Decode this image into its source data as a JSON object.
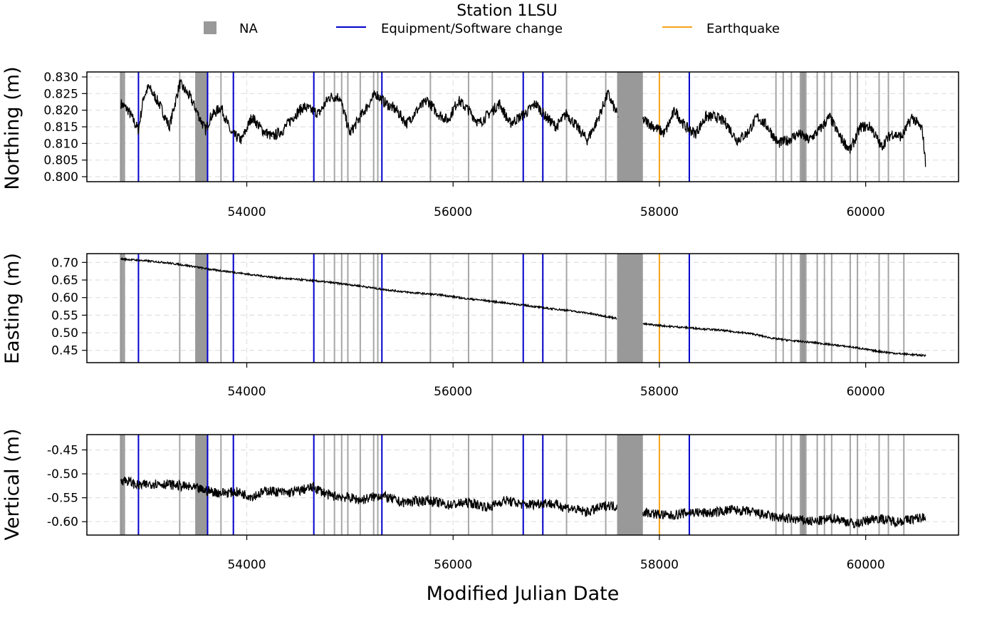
{
  "chart_data": {
    "type": "line",
    "title": "Station 1LSU",
    "xlabel": "Modified Julian Date",
    "xlim": [
      52450,
      60900
    ],
    "x_ticks": [
      54000,
      56000,
      58000,
      60000
    ],
    "grid": true,
    "legend_position": "top",
    "legend": [
      {
        "label": "NA",
        "kind": "box",
        "color": "#999999"
      },
      {
        "label": "Equipment/Software change",
        "kind": "line",
        "color": "#0000cc"
      },
      {
        "label": "Earthquake",
        "kind": "line",
        "color": "#f5a31a"
      }
    ],
    "events": {
      "na_lines": [
        52800,
        53350,
        53750,
        54750,
        54850,
        54920,
        54980,
        55100,
        55230,
        55270,
        55780,
        56150,
        56380,
        57100,
        57480,
        59130,
        59200,
        59280,
        59370,
        59420,
        59530,
        59600,
        59670,
        59850,
        59920,
        60130,
        60220,
        60370
      ],
      "na_bands": [
        [
          52770,
          52820
        ],
        [
          53500,
          53620
        ],
        [
          57590,
          57840
        ],
        [
          59360,
          59420
        ]
      ],
      "equipment_change": [
        52950,
        53620,
        53870,
        54650,
        55310,
        56680,
        56870,
        58290
      ],
      "earthquake": [
        58000
      ]
    },
    "series": [
      {
        "name": "Northing (m)",
        "ylabel": "Northing (m)",
        "ylim": [
          0.7985,
          0.8315
        ],
        "y_ticks": [
          0.8,
          0.805,
          0.81,
          0.815,
          0.82,
          0.825,
          0.83
        ],
        "y_tick_labels": [
          "0.800",
          "0.805",
          "0.810",
          "0.815",
          "0.820",
          "0.825",
          "0.830"
        ],
        "x": [
          52780,
          52850,
          52900,
          52950,
          53000,
          53050,
          53150,
          53250,
          53350,
          53450,
          53600,
          53650,
          53750,
          53850,
          53950,
          54050,
          54150,
          54250,
          54350,
          54450,
          54550,
          54700,
          54800,
          54900,
          55000,
          55100,
          55250,
          55350,
          55450,
          55550,
          55650,
          55750,
          55850,
          55950,
          56050,
          56150,
          56250,
          56350,
          56450,
          56550,
          56700,
          56800,
          56900,
          57000,
          57100,
          57200,
          57300,
          57400,
          57500,
          57600,
          57850,
          57950,
          58050,
          58150,
          58250,
          58350,
          58450,
          58550,
          58650,
          58750,
          58850,
          58950,
          59050,
          59150,
          59250,
          59350,
          59450,
          59550,
          59650,
          59750,
          59850,
          59950,
          60050,
          60150,
          60250,
          60350,
          60450,
          60550,
          60580
        ],
        "values": [
          0.822,
          0.82,
          0.817,
          0.814,
          0.824,
          0.827,
          0.822,
          0.815,
          0.828,
          0.824,
          0.814,
          0.818,
          0.821,
          0.813,
          0.811,
          0.818,
          0.814,
          0.812,
          0.814,
          0.818,
          0.821,
          0.819,
          0.824,
          0.824,
          0.813,
          0.818,
          0.825,
          0.822,
          0.82,
          0.816,
          0.82,
          0.823,
          0.819,
          0.817,
          0.823,
          0.82,
          0.816,
          0.819,
          0.822,
          0.816,
          0.819,
          0.822,
          0.818,
          0.815,
          0.819,
          0.815,
          0.811,
          0.817,
          0.825,
          0.818,
          0.817,
          0.815,
          0.813,
          0.82,
          0.815,
          0.813,
          0.818,
          0.818,
          0.816,
          0.811,
          0.813,
          0.818,
          0.815,
          0.81,
          0.811,
          0.813,
          0.811,
          0.814,
          0.818,
          0.812,
          0.808,
          0.815,
          0.815,
          0.809,
          0.813,
          0.812,
          0.818,
          0.814,
          0.804
        ]
      },
      {
        "name": "Easting (m)",
        "ylabel": "Easting (m)",
        "ylim": [
          0.415,
          0.725
        ],
        "y_ticks": [
          0.45,
          0.5,
          0.55,
          0.6,
          0.65,
          0.7
        ],
        "y_tick_labels": [
          "0.45",
          "0.50",
          "0.55",
          "0.60",
          "0.65",
          "0.70"
        ],
        "x": [
          52780,
          53000,
          53200,
          53450,
          53650,
          53850,
          54050,
          54300,
          54650,
          54900,
          55100,
          55300,
          55600,
          55900,
          56100,
          56300,
          56500,
          56700,
          56900,
          57100,
          57300,
          57550,
          57850,
          58100,
          58300,
          58600,
          58900,
          59100,
          59300,
          59500,
          59700,
          59900,
          60100,
          60300,
          60580
        ],
        "values": [
          0.71,
          0.705,
          0.7,
          0.69,
          0.68,
          0.673,
          0.665,
          0.656,
          0.648,
          0.64,
          0.633,
          0.624,
          0.614,
          0.607,
          0.598,
          0.592,
          0.585,
          0.578,
          0.57,
          0.564,
          0.556,
          0.543,
          0.525,
          0.518,
          0.514,
          0.507,
          0.497,
          0.484,
          0.477,
          0.472,
          0.465,
          0.458,
          0.448,
          0.441,
          0.435
        ]
      },
      {
        "name": "Vertical (m)",
        "ylabel": "Vertical (m)",
        "ylim": [
          -0.628,
          -0.418
        ],
        "y_ticks": [
          -0.6,
          -0.55,
          -0.5,
          -0.45
        ],
        "y_tick_labels": [
          "-0.60",
          "-0.55",
          "-0.50",
          "-0.45"
        ],
        "x": [
          52780,
          52850,
          52950,
          53100,
          53250,
          53450,
          53600,
          53750,
          53900,
          54050,
          54200,
          54400,
          54650,
          54800,
          55000,
          55100,
          55300,
          55500,
          55750,
          55950,
          56150,
          56350,
          56500,
          56700,
          56900,
          57100,
          57300,
          57500,
          57850,
          58000,
          58100,
          58300,
          58500,
          58700,
          58900,
          59100,
          59300,
          59500,
          59700,
          59900,
          60100,
          60300,
          60580
        ],
        "values": [
          -0.512,
          -0.515,
          -0.525,
          -0.52,
          -0.522,
          -0.528,
          -0.535,
          -0.54,
          -0.538,
          -0.547,
          -0.535,
          -0.54,
          -0.528,
          -0.545,
          -0.55,
          -0.555,
          -0.545,
          -0.56,
          -0.555,
          -0.565,
          -0.56,
          -0.57,
          -0.555,
          -0.565,
          -0.56,
          -0.57,
          -0.58,
          -0.565,
          -0.58,
          -0.585,
          -0.588,
          -0.58,
          -0.582,
          -0.575,
          -0.58,
          -0.59,
          -0.595,
          -0.6,
          -0.593,
          -0.605,
          -0.592,
          -0.6,
          -0.59
        ]
      }
    ]
  }
}
